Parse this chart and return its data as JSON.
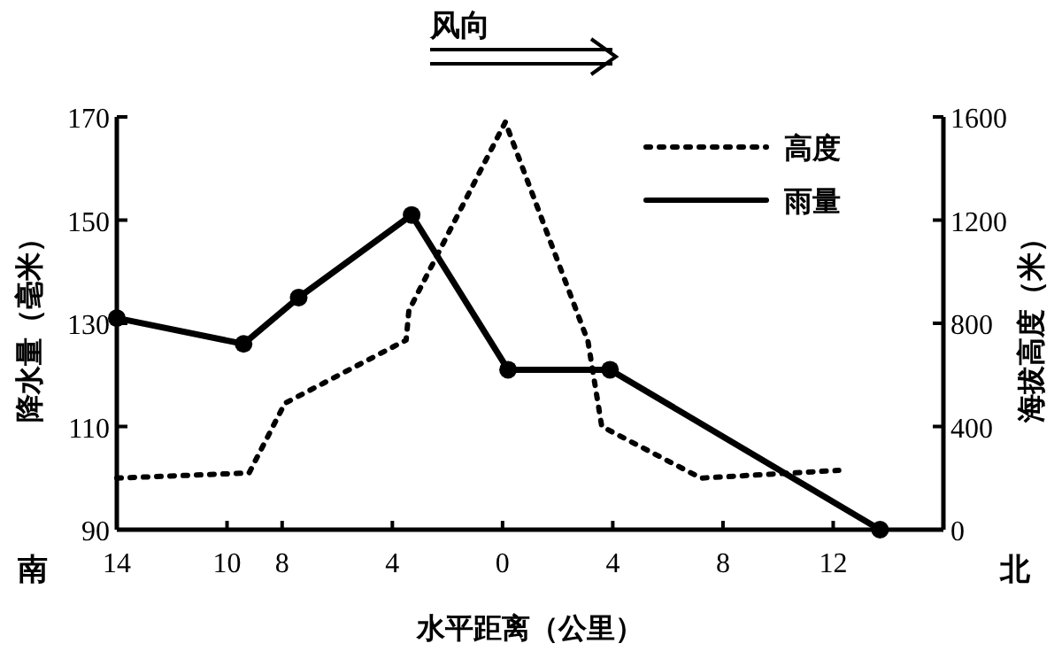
{
  "chart_data": {
    "type": "line",
    "xlabel": "水平距离（公里）",
    "ylabel": "降水量（毫米）",
    "y2label": "海拔高度（米）",
    "annotations": [
      "风向",
      "南",
      "北"
    ],
    "xlim": [
      -14,
      16
    ],
    "xticks": [
      {
        "value": -14,
        "label": "14"
      },
      {
        "value": -10,
        "label": "10"
      },
      {
        "value": -8,
        "label": "8"
      },
      {
        "value": -4,
        "label": "4"
      },
      0,
      4,
      8,
      12
    ],
    "ylim": [
      90,
      170
    ],
    "yticks": [
      90,
      110,
      130,
      150,
      170
    ],
    "y2lim": [
      0,
      1600
    ],
    "y2ticks": [
      0,
      400,
      800,
      1200,
      1600
    ],
    "grid": false,
    "legend": "top right",
    "series": [
      {
        "name": "高度",
        "color": "#000000",
        "axis": "y2",
        "line_style": "dotted",
        "marker": "none",
        "x": [
          -14,
          -9.2,
          -7.9,
          -3.5,
          -3.4,
          0.1,
          3.1,
          3.6,
          7.2,
          12.2
        ],
        "values": [
          200,
          220,
          490,
          735,
          850,
          1580,
          730,
          400,
          200,
          230
        ]
      },
      {
        "name": "雨量",
        "color": "#000000",
        "axis": "y",
        "line_style": "solid",
        "marker": "circle",
        "x": [
          -14,
          -9.4,
          -7.4,
          -3.3,
          0.2,
          3.9,
          13.7
        ],
        "values": [
          131,
          126,
          135,
          151,
          121,
          121,
          90
        ]
      }
    ]
  }
}
